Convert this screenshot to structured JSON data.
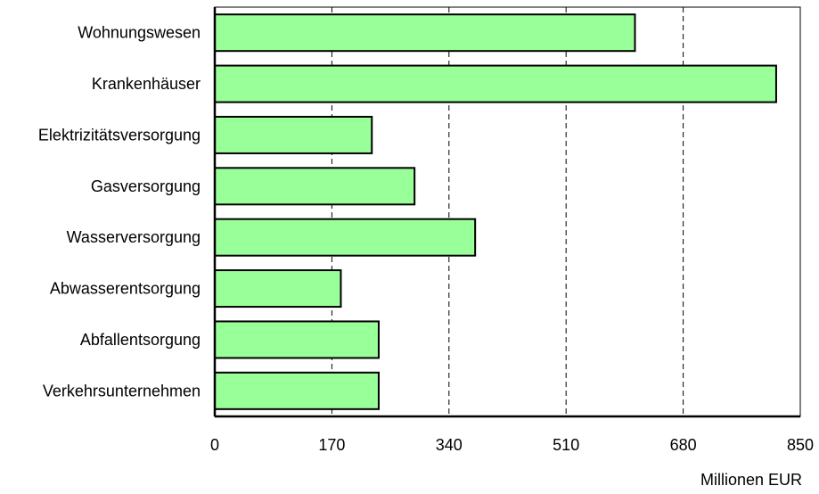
{
  "chart_data": {
    "type": "bar",
    "orientation": "horizontal",
    "categories": [
      "Wohnungswesen",
      "Krankenhäuser",
      "Elektrizitätsversorgung",
      "Gasversorgung",
      "Wasserversorgung",
      "Abwasserentsorgung",
      "Abfallentsorgung",
      "Verkehrsunternehmen"
    ],
    "values": [
      610,
      815,
      228,
      290,
      378,
      183,
      238,
      238
    ],
    "xlim": [
      0,
      850
    ],
    "xticks": [
      0,
      170,
      340,
      510,
      680,
      850
    ],
    "xlabel": "Millionen EUR",
    "title": "",
    "grid": "vertical dashed",
    "bar_color": "#99ff99",
    "bar_edge_color": "#000000"
  }
}
